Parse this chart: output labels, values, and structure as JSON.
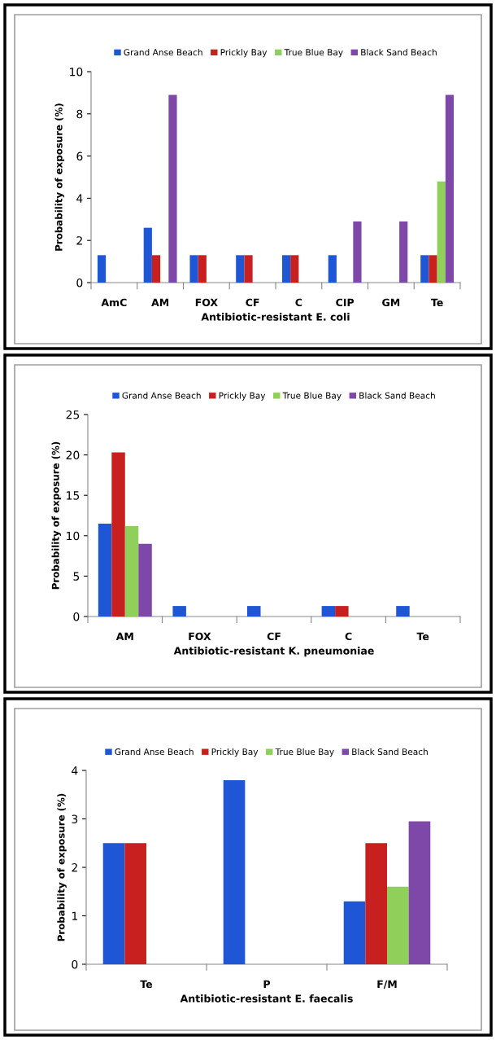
{
  "chart_data": [
    {
      "type": "bar",
      "xlabel": "Antibiotic-resistant E. coli",
      "ylabel": "Probability of exposure (%)",
      "categories": [
        "AmC",
        "AM",
        "FOX",
        "CF",
        "C",
        "CIP",
        "GM",
        "Te"
      ],
      "ylim": [
        0,
        10
      ],
      "yticks": [
        0,
        2,
        4,
        6,
        8,
        10
      ],
      "legend": "top",
      "grid": false,
      "series": [
        {
          "name": "Grand Anse Beach",
          "color": "#1f56d6",
          "values": [
            1.3,
            2.6,
            1.3,
            1.3,
            1.3,
            1.3,
            null,
            1.3
          ]
        },
        {
          "name": "Prickly Bay",
          "color": "#c8201f",
          "values": [
            null,
            1.3,
            1.3,
            1.3,
            1.3,
            null,
            null,
            1.3
          ]
        },
        {
          "name": "True Blue Bay",
          "color": "#8fcf5a",
          "values": [
            null,
            null,
            null,
            null,
            null,
            null,
            null,
            4.8
          ]
        },
        {
          "name": "Black Sand Beach",
          "color": "#7e48a8",
          "values": [
            null,
            8.9,
            null,
            null,
            null,
            2.9,
            2.9,
            8.9
          ]
        }
      ]
    },
    {
      "type": "bar",
      "xlabel": "Antibiotic-resistant K. pneumoniae",
      "ylabel": "Probability of exposure (%)",
      "categories": [
        "AM",
        "FOX",
        "CF",
        "C",
        "Te"
      ],
      "ylim": [
        0,
        25
      ],
      "yticks": [
        0,
        5,
        10,
        15,
        20,
        25
      ],
      "legend": "top",
      "grid": false,
      "series": [
        {
          "name": "Grand Anse Beach",
          "color": "#1f56d6",
          "values": [
            11.5,
            1.3,
            1.3,
            1.3,
            1.3
          ]
        },
        {
          "name": "Prickly Bay",
          "color": "#c8201f",
          "values": [
            20.3,
            null,
            null,
            1.3,
            null
          ]
        },
        {
          "name": "True Blue Bay",
          "color": "#8fcf5a",
          "values": [
            11.2,
            null,
            null,
            null,
            null
          ]
        },
        {
          "name": "Black Sand Beach",
          "color": "#7e48a8",
          "values": [
            9.0,
            null,
            null,
            null,
            null
          ]
        }
      ]
    },
    {
      "type": "bar",
      "xlabel": "Antibiotic-resistant E. faecalis",
      "ylabel": "Probability of exposure (%)",
      "categories": [
        "Te",
        "P",
        "F/M"
      ],
      "ylim": [
        0,
        4
      ],
      "yticks": [
        0,
        1,
        2,
        3,
        4
      ],
      "legend": "top",
      "grid": false,
      "series": [
        {
          "name": "Grand Anse Beach",
          "color": "#1f56d6",
          "values": [
            2.5,
            3.8,
            1.3
          ]
        },
        {
          "name": "Prickly Bay",
          "color": "#c8201f",
          "values": [
            2.5,
            null,
            2.5
          ]
        },
        {
          "name": "True Blue Bay",
          "color": "#8fcf5a",
          "values": [
            null,
            null,
            1.6
          ]
        },
        {
          "name": "Black Sand Beach",
          "color": "#7e48a8",
          "values": [
            null,
            null,
            2.95
          ]
        }
      ]
    }
  ]
}
